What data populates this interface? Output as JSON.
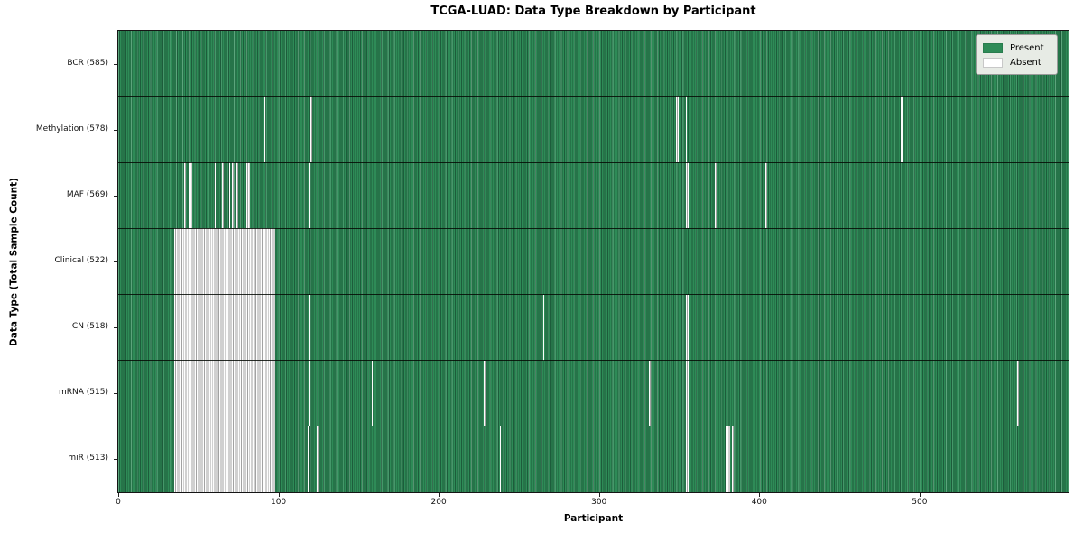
{
  "chart_data": {
    "type": "heatmap",
    "title": "TCGA-LUAD: Data Type Breakdown by Participant",
    "xlabel": "Participant",
    "ylabel": "Data Type (Total Sample Count)",
    "x_ticks": [
      0,
      100,
      200,
      300,
      400,
      500
    ],
    "x_range": [
      0,
      593
    ],
    "grid": false,
    "legend_position": "upper right",
    "legend": [
      {
        "label": "Present",
        "color": "#2e8b57"
      },
      {
        "label": "Absent",
        "color": "#ffffff"
      }
    ],
    "colors": {
      "present": "#2e8b57",
      "present_edge": "#1d5c3b",
      "absent": "#ffffff",
      "absent_edge": "#a2a2a2"
    },
    "rows": [
      {
        "label": "BCR (585)",
        "total_samples": 585,
        "absent_ranges": []
      },
      {
        "label": "Methylation (578)",
        "total_samples": 578,
        "absent_ranges": [
          [
            91,
            1
          ],
          [
            120,
            1
          ],
          [
            348,
            2
          ],
          [
            354,
            1
          ],
          [
            488,
            2
          ]
        ]
      },
      {
        "label": "MAF (569)",
        "total_samples": 569,
        "absent_ranges": [
          [
            41,
            1
          ],
          [
            44,
            2
          ],
          [
            60,
            1
          ],
          [
            65,
            1
          ],
          [
            69,
            1
          ],
          [
            71,
            1
          ],
          [
            74,
            1
          ],
          [
            80,
            2
          ],
          [
            119,
            1
          ],
          [
            354,
            2
          ],
          [
            372,
            2
          ],
          [
            404,
            1
          ]
        ]
      },
      {
        "label": "Clinical (522)",
        "total_samples": 522,
        "absent_ranges": [
          [
            35,
            63
          ]
        ]
      },
      {
        "label": "CN (518)",
        "total_samples": 518,
        "absent_ranges": [
          [
            35,
            63
          ],
          [
            119,
            1
          ],
          [
            265,
            1
          ],
          [
            354,
            2
          ]
        ]
      },
      {
        "label": "mRNA (515)",
        "total_samples": 515,
        "absent_ranges": [
          [
            35,
            63
          ],
          [
            119,
            1
          ],
          [
            158,
            1
          ],
          [
            228,
            1
          ],
          [
            331,
            1
          ],
          [
            354,
            2
          ],
          [
            561,
            1
          ]
        ]
      },
      {
        "label": "miR (513)",
        "total_samples": 513,
        "absent_ranges": [
          [
            35,
            63
          ],
          [
            118,
            1
          ],
          [
            124,
            1
          ],
          [
            238,
            1
          ],
          [
            354,
            2
          ],
          [
            379,
            3
          ],
          [
            383,
            1
          ]
        ]
      }
    ]
  }
}
